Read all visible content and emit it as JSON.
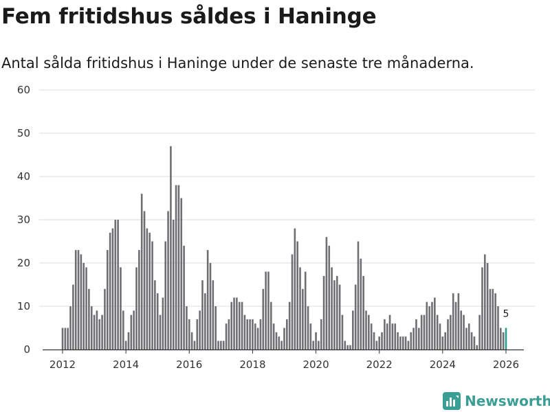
{
  "title": "Fem fritidshus såldes i Haninge",
  "subtitle": "Antal sålda fritidshus i Haninge under de senaste tre månaderna.",
  "brand": {
    "name": "Newsworthy",
    "icon": "bar-chart-logo-icon",
    "color": "#3a9e95"
  },
  "chart_data": {
    "type": "bar",
    "title": "Fem fritidshus såldes i Haninge",
    "xlabel": "",
    "ylabel": "",
    "ylim": [
      0,
      60
    ],
    "yticks": [
      0,
      10,
      20,
      30,
      40,
      50,
      60
    ],
    "xticks": [
      {
        "label": "2012",
        "value": 2012
      },
      {
        "label": "2014",
        "value": 2014
      },
      {
        "label": "2016",
        "value": 2016
      },
      {
        "label": "2018",
        "value": 2018
      },
      {
        "label": "2020",
        "value": 2020
      },
      {
        "label": "2022",
        "value": 2022
      },
      {
        "label": "2024",
        "value": 2024
      },
      {
        "label": "2026",
        "value": 2026
      }
    ],
    "x_start": 2012,
    "periods_per_year": 12,
    "bar_color": "#6e6e73",
    "highlight_color": "#2a9d8f",
    "grid": true,
    "values": [
      5,
      5,
      5,
      10,
      15,
      23,
      23,
      22,
      20,
      19,
      14,
      10,
      8,
      9,
      7,
      8,
      14,
      23,
      27,
      28,
      30,
      30,
      19,
      9,
      2,
      4,
      8,
      9,
      19,
      23,
      36,
      32,
      28,
      27,
      25,
      16,
      13,
      8,
      12,
      25,
      32,
      47,
      30,
      38,
      38,
      35,
      24,
      10,
      7,
      4,
      2,
      7,
      9,
      16,
      13,
      23,
      20,
      16,
      10,
      2,
      2,
      2,
      6,
      7,
      11,
      12,
      12,
      11,
      11,
      8,
      7,
      7,
      7,
      6,
      5,
      7,
      14,
      18,
      18,
      11,
      6,
      4,
      3,
      2,
      5,
      7,
      11,
      22,
      28,
      25,
      19,
      14,
      18,
      10,
      6,
      2,
      4,
      2,
      7,
      17,
      26,
      24,
      19,
      16,
      17,
      15,
      8,
      2,
      1,
      1,
      9,
      15,
      25,
      21,
      17,
      9,
      8,
      6,
      4,
      2,
      3,
      4,
      7,
      6,
      8,
      6,
      6,
      4,
      3,
      3,
      3,
      2,
      4,
      5,
      7,
      5,
      8,
      8,
      11,
      10,
      11,
      12,
      8,
      6,
      3,
      4,
      7,
      8,
      13,
      11,
      13,
      9,
      8,
      5,
      6,
      4,
      3,
      1,
      8,
      19,
      22,
      20,
      14,
      14,
      13,
      10,
      5,
      4,
      5
    ],
    "data_labels": [
      {
        "index": 168,
        "text": "5"
      }
    ]
  }
}
